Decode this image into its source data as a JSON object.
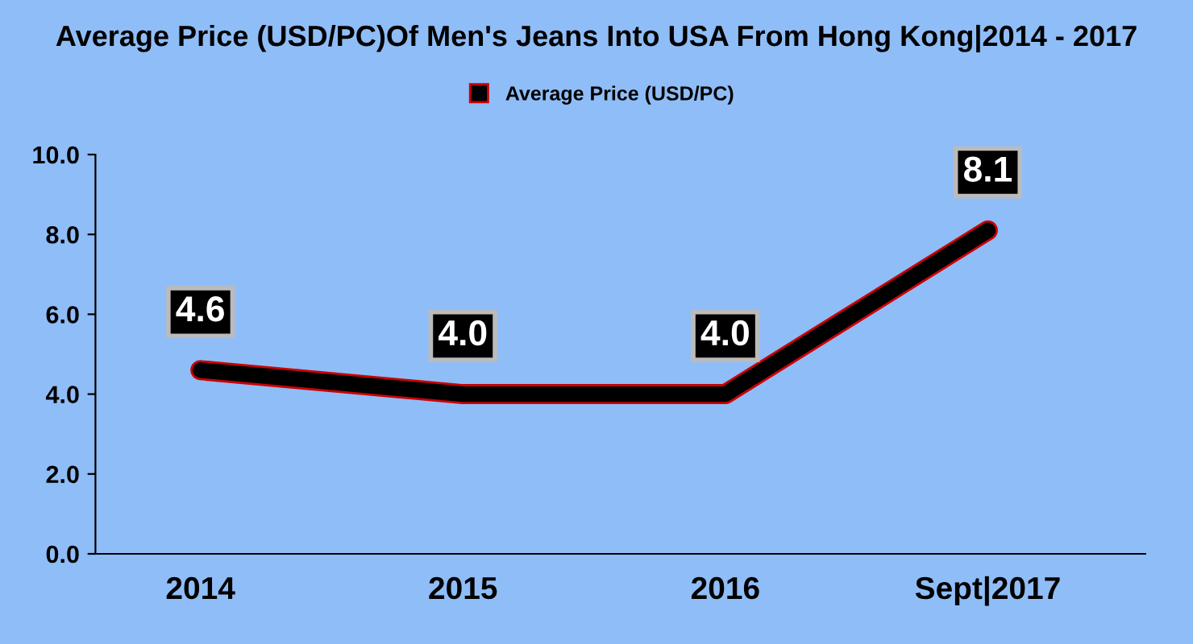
{
  "chart_data": {
    "type": "line",
    "title": "Average Price (USD/PC)Of Men's Jeans Into USA From Hong Kong|2014 - 2017",
    "categories": [
      "2014",
      "2015",
      "2016",
      "Sept|2017"
    ],
    "series": [
      {
        "name": "Average Price (USD/PC)",
        "color": "#000000",
        "values": [
          4.6,
          4.0,
          4.0,
          8.1
        ],
        "value_labels": [
          "4.6",
          "4.0",
          "4.0",
          "8.1"
        ]
      }
    ],
    "ylim": [
      0,
      10
    ],
    "yticks": [
      {
        "value": 0,
        "label": "0.0"
      },
      {
        "value": 2,
        "label": "2.0"
      },
      {
        "value": 4,
        "label": "4.0"
      },
      {
        "value": 6,
        "label": "6.0"
      },
      {
        "value": 8,
        "label": "8.0"
      },
      {
        "value": 10,
        "label": "10.0"
      }
    ],
    "grid": false,
    "legend": "top",
    "marker": "none",
    "line_style": "solid"
  }
}
